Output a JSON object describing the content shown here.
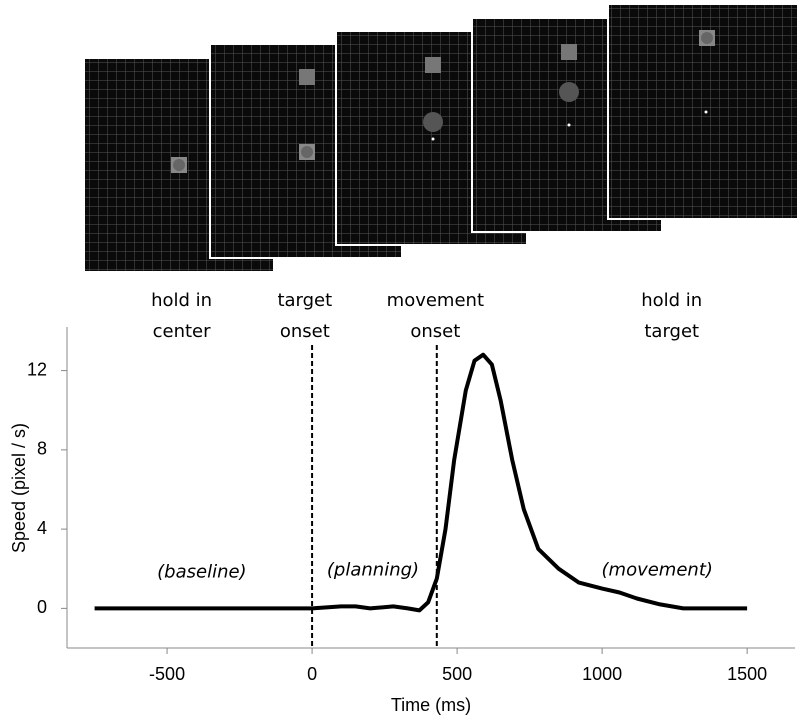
{
  "chart_data": {
    "type": "line",
    "xlabel": "Time (ms)",
    "ylabel": "Speed  (pixel / s)",
    "xlim": [
      -845,
      1665
    ],
    "ylim": [
      -2,
      14.2
    ],
    "xticks": [
      -500,
      0,
      500,
      1000,
      1500
    ],
    "yticks": [
      0,
      4,
      8,
      12
    ],
    "markers": [
      0,
      430
    ],
    "phase_labels": [
      {
        "lines": [
          "hold in",
          "center"
        ],
        "x": -450
      },
      {
        "lines": [
          "target",
          "onset"
        ],
        "x": -25
      },
      {
        "lines": [
          "movement",
          "onset"
        ],
        "x": 425
      },
      {
        "lines": [
          "hold in",
          "target"
        ],
        "x": 1240
      }
    ],
    "period_labels": [
      {
        "text": "(baseline)",
        "x": -380,
        "y": 1.8
      },
      {
        "text": "(planning)",
        "x": 210,
        "y": 1.9
      },
      {
        "text": "(movement)",
        "x": 1190,
        "y": 1.9
      }
    ],
    "series": [
      {
        "color": "#000000",
        "x": [
          -750,
          0,
          100,
          150,
          200,
          280,
          330,
          370,
          400,
          430,
          460,
          490,
          530,
          560,
          590,
          620,
          650,
          690,
          730,
          780,
          850,
          920,
          1000,
          1060,
          1120,
          1200,
          1280,
          1350,
          1500
        ],
        "values": [
          0,
          0,
          0.1,
          0.1,
          0,
          0.1,
          0,
          -0.1,
          0.3,
          1.5,
          4,
          7.5,
          11,
          12.5,
          12.8,
          12.3,
          10.5,
          7.5,
          5,
          3,
          2,
          1.3,
          1,
          0.8,
          0.5,
          0.2,
          0,
          0,
          0
        ]
      }
    ]
  }
}
